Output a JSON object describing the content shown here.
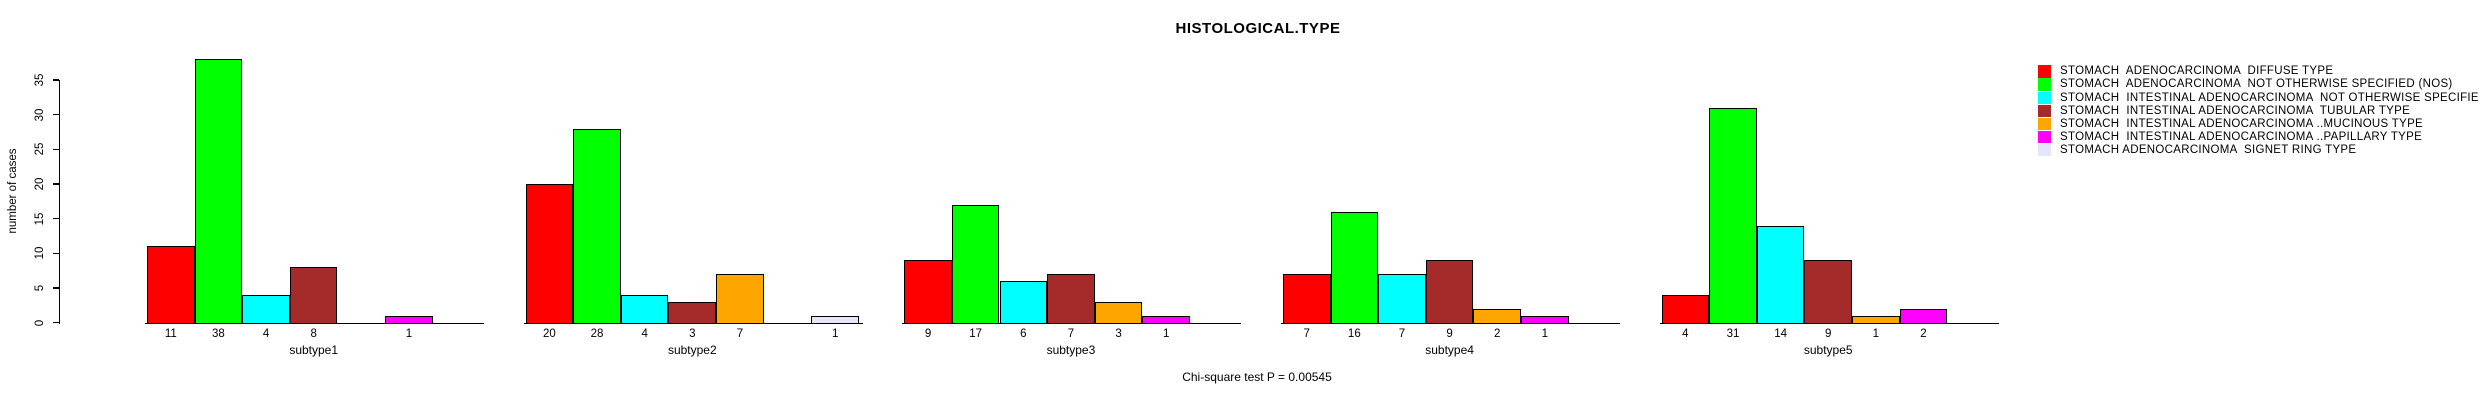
{
  "page": {
    "background": "#FFFFFF"
  },
  "title": "HISTOLOGICAL.TYPE",
  "footer": "Chi-square test P = 0.00545",
  "chart_data": {
    "type": "bar",
    "title": "HISTOLOGICAL.TYPE",
    "ylabel": "number of cases",
    "footer": "Chi-square test P = 0.00545",
    "ylim": [
      0,
      35
    ],
    "yticks": [
      0,
      5,
      10,
      15,
      20,
      25,
      30,
      35
    ],
    "grid": false,
    "legend_position": "right",
    "bar_labels": "nonzero values printed under each bar",
    "panels": [
      "subtype1",
      "subtype2",
      "subtype3",
      "subtype4",
      "subtype5"
    ],
    "series": [
      {
        "name": "STOMACH  ADENOCARCINOMA  DIFFUSE TYPE",
        "color": "#FF0000",
        "values": [
          11,
          20,
          9,
          7,
          4
        ]
      },
      {
        "name": "STOMACH  ADENOCARCINOMA  NOT OTHERWISE SPECIFIED (NOS)",
        "color": "#00FF00",
        "values": [
          38,
          28,
          17,
          16,
          31
        ]
      },
      {
        "name": "STOMACH  INTESTINAL ADENOCARCINOMA  NOT OTHERWISE SPECIFIE",
        "color": "#00FFFF",
        "values": [
          4,
          4,
          6,
          7,
          14
        ]
      },
      {
        "name": "STOMACH  INTESTINAL ADENOCARCINOMA  TUBULAR TYPE",
        "color": "#A52A2A",
        "values": [
          8,
          3,
          7,
          9,
          9
        ]
      },
      {
        "name": "STOMACH  INTESTINAL ADENOCARCINOMA ..MUCINOUS TYPE",
        "color": "#FFA500",
        "values": [
          0,
          7,
          3,
          2,
          1
        ]
      },
      {
        "name": "STOMACH  INTESTINAL ADENOCARCINOMA ..PAPILLARY TYPE",
        "color": "#FF00FF",
        "values": [
          1,
          0,
          1,
          1,
          2
        ]
      },
      {
        "name": "STOMACH ADENOCARCINOMA  SIGNET RING TYPE",
        "color": "#E6E6FA",
        "values": [
          0,
          1,
          0,
          0,
          0
        ]
      }
    ]
  }
}
